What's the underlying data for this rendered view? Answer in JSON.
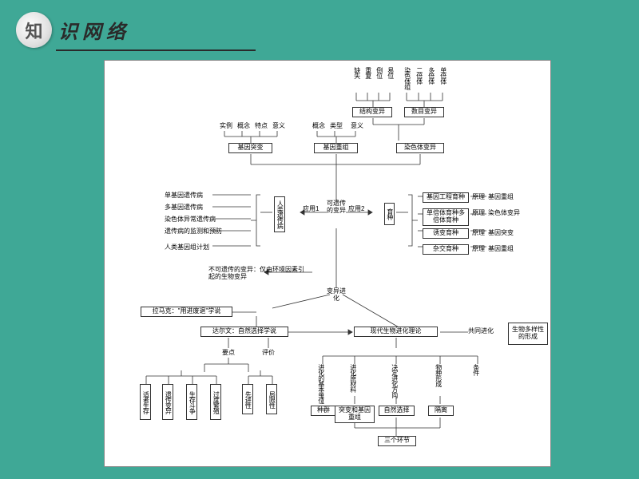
{
  "header": {
    "circle": "知",
    "text": "识网络"
  },
  "top_vert": [
    "缺失",
    "重复",
    "倒位",
    "易位",
    "染色体组",
    "二倍体",
    "多倍体",
    "单倍体"
  ],
  "struct_var": "结构变异",
  "num_var": "数目变异",
  "row1": [
    "实例",
    "概念",
    "特点",
    "意义"
  ],
  "row1b": [
    "概念",
    "类型",
    "意义"
  ],
  "gene_mut": "基因突变",
  "gene_recomb": "基因重组",
  "chrom_var": "染色体变异",
  "left_items": [
    "单基因遗传病",
    "多基因遗传病",
    "染色体异常遗传病",
    "遗传病的监测和预防",
    "人类基因组计划"
  ],
  "human_disease": "人类遗传病",
  "app1": "应用1",
  "app2": "应用2",
  "heritable": "可遗传的变异",
  "breeding": "育种",
  "breed_items": [
    "基因工程育种",
    "单倍体育种多倍体育种",
    "诱变育种",
    "杂交育种"
  ],
  "principle": "原理",
  "breed_results": [
    "基因重组",
    "染色体变异",
    "基因突变",
    "基因重组"
  ],
  "non_heritable": "不可遗传的变异：仅由环境因素引起的生物变异",
  "var_evo": "变异进化",
  "lamarck": "拉马克：\"用进废退\"学说",
  "darwin": "达尔文：自然选择学说",
  "modern": "现代生物进化理论",
  "coevo": "共同进化",
  "biodiv": "生物多样性的形成",
  "points": "要点",
  "eval": "评价",
  "darwin_items": [
    "适者生存",
    "遗传变异",
    "生存斗争",
    "过度繁殖"
  ],
  "eval_items": [
    "先进性",
    "局限性"
  ],
  "modern_labels": [
    "进化的基本单位",
    "进化原材料",
    "决定进化方向",
    "物种形成",
    "条件"
  ],
  "modern_items": [
    "种群",
    "突变和基因重组",
    "自然选择",
    "隔离"
  ],
  "three_links": "三个环节",
  "layout": {
    "top_vert_x": [
      311,
      325,
      339,
      353,
      374,
      389,
      404,
      419
    ],
    "row1_x": [
      144,
      166,
      188,
      210
    ],
    "row1b_x": [
      260,
      282,
      308
    ],
    "breed_y": [
      165,
      185,
      210,
      230
    ],
    "left_y": [
      165,
      180,
      195,
      210,
      230
    ]
  }
}
